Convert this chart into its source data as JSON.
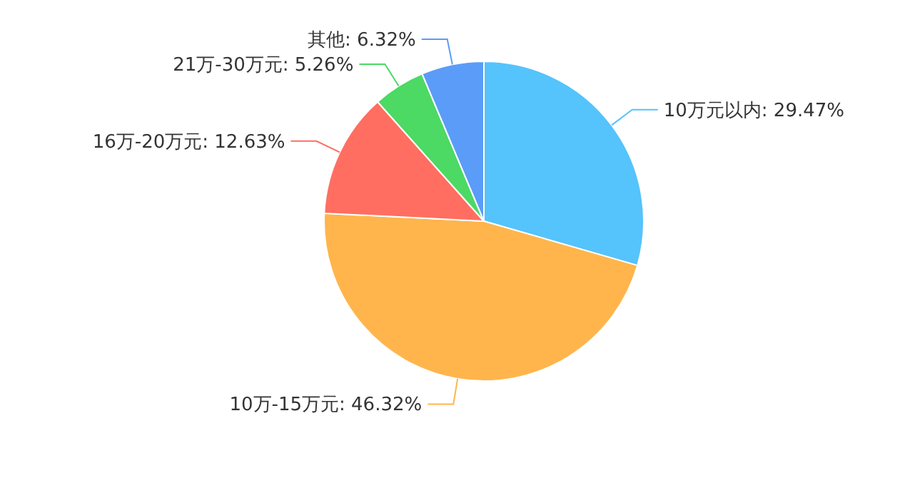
{
  "chart_data": {
    "type": "pie",
    "categories": [
      "10万元以内",
      "10万-15万元",
      "16万-20万元",
      "21万-30万元",
      "其他"
    ],
    "values": [
      29.47,
      46.32,
      12.63,
      5.26,
      6.32
    ],
    "value_labels": [
      ": 29.47%",
      ": 46.32%",
      ": 12.63%",
      ": 5.26%",
      ": 6.32%"
    ],
    "colors": [
      "#55c3fc",
      "#ffb54c",
      "#ff6e61",
      "#4cd964",
      "#5b9cf8"
    ]
  }
}
